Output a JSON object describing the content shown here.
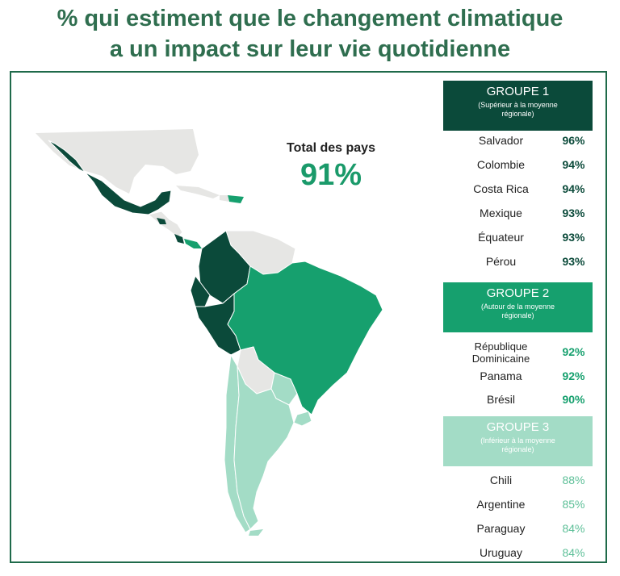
{
  "title_line1": "% qui estiment que le changement climatique",
  "title_line2": "a un impact sur leur vie quotidienne",
  "total": {
    "label": "Total des pays",
    "value": "91%"
  },
  "colors": {
    "group1": "#0b4a3a",
    "group2": "#16a06e",
    "group3": "#a3dcc6",
    "no_data": "#e6e6e4",
    "title": "#2f6e4f"
  },
  "groups": [
    {
      "name": "GROUPE 1",
      "subtitle_line1": "(Supérieur à la moyenne",
      "subtitle_line2": "régionale)"
    },
    {
      "name": "GROUPE 2",
      "subtitle_line1": "(Autour de la moyenne",
      "subtitle_line2": "régionale)"
    },
    {
      "name": "GROUPE 3",
      "subtitle_line1": "(Inférieur à la moyenne",
      "subtitle_line2": "régionale)"
    }
  ],
  "chart_data": {
    "type": "table",
    "series": [
      {
        "group": "GROUPE 1",
        "rows": [
          {
            "country": "Salvador",
            "value": "96%"
          },
          {
            "country": "Colombie",
            "value": "94%"
          },
          {
            "country": "Costa Rica",
            "value": "94%"
          },
          {
            "country": "Mexique",
            "value": "93%"
          },
          {
            "country": "Équateur",
            "value": "93%"
          },
          {
            "country": "Pérou",
            "value": "93%"
          }
        ]
      },
      {
        "group": "GROUPE 2",
        "rows": [
          {
            "country_line1": "République",
            "country_line2": "Dominicaine",
            "value": "92%"
          },
          {
            "country": "Panama",
            "value": "92%"
          },
          {
            "country": "Brésil",
            "value": "90%"
          }
        ]
      },
      {
        "group": "GROUPE 3",
        "rows": [
          {
            "country": "Chili",
            "value": "88%"
          },
          {
            "country": "Argentine",
            "value": "85%"
          },
          {
            "country": "Paraguay",
            "value": "84%"
          },
          {
            "country": "Uruguay",
            "value": "84%"
          }
        ]
      }
    ]
  }
}
